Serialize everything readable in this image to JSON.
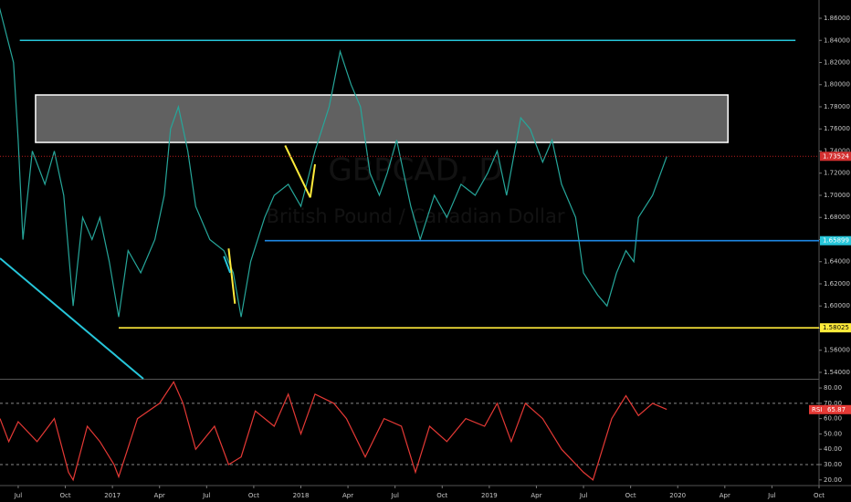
{
  "chart_data": [
    {
      "type": "line",
      "title": "GBPCAD, D",
      "subtitle": "British Pound / Canadian Dollar",
      "xlim": [
        -1.16,
        51.0
      ],
      "xticks": [
        {
          "value": 0,
          "label": "Jul"
        },
        {
          "value": 3,
          "label": "Oct"
        },
        {
          "value": 6,
          "label": "2017"
        },
        {
          "value": 9,
          "label": "Apr"
        },
        {
          "value": 12,
          "label": "Jul"
        },
        {
          "value": 15,
          "label": "Oct"
        },
        {
          "value": 18,
          "label": "2018"
        },
        {
          "value": 21,
          "label": "Apr"
        },
        {
          "value": 24,
          "label": "Jul"
        },
        {
          "value": 27,
          "label": "Oct"
        },
        {
          "value": 30,
          "label": "2019"
        },
        {
          "value": 33,
          "label": "Apr"
        },
        {
          "value": 36,
          "label": "Jul"
        },
        {
          "value": 39,
          "label": "Oct"
        },
        {
          "value": 42,
          "label": "2020"
        },
        {
          "value": 45,
          "label": "Apr"
        },
        {
          "value": 48,
          "label": "Jul"
        },
        {
          "value": 51,
          "label": "Oct"
        }
      ],
      "ylim": [
        1.5342,
        1.8765
      ],
      "yticks": [
        {
          "value": 1.54,
          "label": "1.54000"
        },
        {
          "value": 1.56,
          "label": "1.56000"
        },
        {
          "value": 1.58,
          "label": "1.58000"
        },
        {
          "value": 1.6,
          "label": "1.60000"
        },
        {
          "value": 1.62,
          "label": "1.62000"
        },
        {
          "value": 1.64,
          "label": "1.64000"
        },
        {
          "value": 1.66,
          "label": "1.66000"
        },
        {
          "value": 1.68,
          "label": "1.68000"
        },
        {
          "value": 1.7,
          "label": "1.70000"
        },
        {
          "value": 1.72,
          "label": "1.72000"
        },
        {
          "value": 1.74,
          "label": "1.74000"
        },
        {
          "value": 1.76,
          "label": "1.76000"
        },
        {
          "value": 1.78,
          "label": "1.78000"
        },
        {
          "value": 1.8,
          "label": "1.80000"
        },
        {
          "value": 1.82,
          "label": "1.82000"
        },
        {
          "value": 1.84,
          "label": "1.84000"
        },
        {
          "value": 1.86,
          "label": "1.86000"
        }
      ],
      "series": [
        {
          "color": "#26a69a",
          "x": [
            -1.2,
            -0.3,
            0,
            0.3,
            0.9,
            1.7,
            2.3,
            2.9,
            3.5,
            4.1,
            4.7,
            5.2,
            5.8,
            6.4,
            7.0,
            7.8,
            8.7,
            9.3,
            9.7,
            10.2,
            10.8,
            11.3,
            12.2,
            13.1,
            13.7,
            14.2,
            14.8,
            15.7,
            16.3,
            17.2,
            18.0,
            18.9,
            19.8,
            20.5,
            21.2,
            21.8,
            22.4,
            23.0,
            23.5,
            24.1,
            25.0,
            25.6,
            26.5,
            27.3,
            28.2,
            29.1,
            29.9,
            30.5,
            31.1,
            32.0,
            32.6,
            33.4,
            34.0,
            34.6,
            35.5,
            36.0,
            36.9,
            37.5,
            38.1,
            38.7,
            39.2,
            39.5,
            40.4,
            41.3
          ],
          "values": [
            1.87,
            1.82,
            1.75,
            1.66,
            1.74,
            1.71,
            1.74,
            1.7,
            1.6,
            1.68,
            1.66,
            1.68,
            1.64,
            1.59,
            1.65,
            1.63,
            1.66,
            1.7,
            1.76,
            1.78,
            1.74,
            1.69,
            1.66,
            1.65,
            1.63,
            1.59,
            1.64,
            1.68,
            1.7,
            1.71,
            1.69,
            1.74,
            1.78,
            1.83,
            1.8,
            1.78,
            1.72,
            1.7,
            1.72,
            1.75,
            1.69,
            1.66,
            1.7,
            1.68,
            1.71,
            1.7,
            1.72,
            1.74,
            1.7,
            1.77,
            1.76,
            1.73,
            1.75,
            1.71,
            1.68,
            1.63,
            1.61,
            1.6,
            1.63,
            1.65,
            1.64,
            1.68,
            1.7,
            1.735
          ]
        }
      ],
      "zone": {
        "ylim": [
          1.7478,
          1.7907
        ],
        "xrange": [
          0,
          45.2
        ],
        "color": "#b0b0b0"
      },
      "levels": [
        {
          "value": 1.84,
          "color": "#26c6da",
          "xrange": [
            0.1,
            49.5
          ]
        },
        {
          "value": 1.65899,
          "color": "#1e88e5",
          "xrange": [
            15.7,
            51.0
          ],
          "tag": "#26c6da"
        },
        {
          "value": 1.58025,
          "color": "#ffeb3b",
          "xrange": [
            6.4,
            51.0
          ],
          "tag": "#ffeb3b"
        },
        {
          "value": 1.73524,
          "color": "#b71c1c",
          "xrange": [
            -1.16,
            51.0
          ],
          "tag": "#d32f2f",
          "dashed": true
        }
      ],
      "trendlines": [
        {
          "color": "#26c6da",
          "x": [
            -1.16,
            7.97
          ],
          "values": [
            1.6431,
            1.5342
          ]
        },
        {
          "color": "#ffeb3b",
          "x": [
            17.0,
            18.6
          ],
          "values": [
            1.745,
            1.698
          ]
        },
        {
          "color": "#ffeb3b",
          "x": [
            18.6,
            18.9
          ],
          "values": [
            1.698,
            1.728
          ]
        },
        {
          "color": "#ffeb3b",
          "x": [
            13.4,
            13.8
          ],
          "values": [
            1.652,
            1.602
          ]
        },
        {
          "color": "#26c6da",
          "x": [
            13.1,
            13.5
          ],
          "values": [
            1.645,
            1.63
          ]
        }
      ]
    },
    {
      "type": "line",
      "title": "RSI",
      "xlim": [
        -1.16,
        51.0
      ],
      "ylim": [
        17.5,
        85.4
      ],
      "yticks": [
        {
          "value": 20,
          "label": "20.00"
        },
        {
          "value": 30,
          "label": "30.00"
        },
        {
          "value": 40,
          "label": "40.00"
        },
        {
          "value": 50,
          "label": "50.00"
        },
        {
          "value": 60,
          "label": "60.00"
        },
        {
          "value": 70,
          "label": "70.00"
        },
        {
          "value": 80,
          "label": "80.00"
        }
      ],
      "bands": [
        70,
        30
      ],
      "last": 65.87,
      "series": [
        {
          "color": "#e53935",
          "x": [
            -1.16,
            -0.6,
            0,
            1.2,
            2.3,
            3.2,
            3.5,
            4.4,
            5.2,
            6.1,
            6.4,
            7.6,
            9.0,
            9.9,
            10.5,
            11.3,
            12.5,
            13.4,
            14.2,
            15.1,
            16.3,
            17.2,
            18.0,
            18.9,
            20.1,
            20.9,
            22.1,
            23.3,
            24.4,
            25.3,
            26.2,
            27.3,
            28.5,
            29.7,
            30.5,
            31.4,
            32.3,
            33.4,
            34.6,
            36.0,
            36.6,
            37.2,
            37.8,
            38.7,
            39.5,
            40.4,
            41.3
          ],
          "values": [
            60,
            45,
            58,
            45,
            60,
            25,
            20,
            55,
            45,
            30,
            22,
            60,
            70,
            84,
            70,
            40,
            55,
            30,
            35,
            65,
            55,
            76,
            50,
            76,
            70,
            60,
            35,
            60,
            55,
            25,
            55,
            45,
            60,
            55,
            70,
            45,
            70,
            60,
            40,
            25,
            20,
            40,
            60,
            75,
            62,
            70,
            66
          ]
        }
      ]
    }
  ]
}
